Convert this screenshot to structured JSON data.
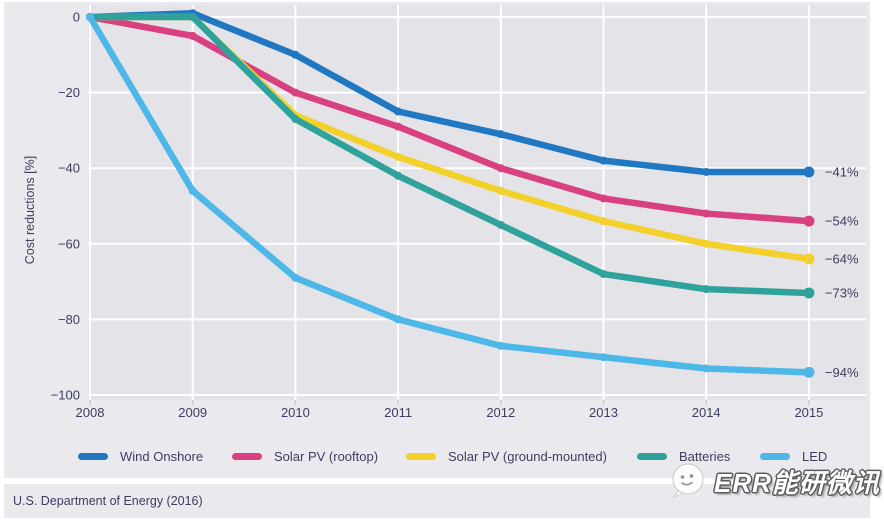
{
  "chart_data": {
    "type": "line",
    "title": "",
    "xlabel": "",
    "ylabel": "Cost reductions [%]",
    "x_labels": [
      "2008",
      "2009",
      "2010",
      "2011",
      "2012",
      "2013",
      "2014",
      "2015"
    ],
    "yticks": [
      {
        "label": "0",
        "v": 0
      },
      {
        "label": "−20",
        "v": -20
      },
      {
        "label": "−40",
        "v": -40
      },
      {
        "label": "−60",
        "v": -60
      },
      {
        "label": "−80",
        "v": -80
      },
      {
        "label": "−100",
        "v": -100
      }
    ],
    "ylim": [
      -100,
      4
    ],
    "grid": true,
    "legend_position": "bottom",
    "series": [
      {
        "name": "Wind Onshore",
        "color": "#1f78c1",
        "end_label": "−41%",
        "values": [
          0,
          1,
          -10,
          -25,
          -31,
          -38,
          -41,
          -41
        ]
      },
      {
        "name": "Solar PV (rooftop)",
        "color": "#d94080",
        "end_label": "−54%",
        "values": [
          0,
          -5,
          -20,
          -29,
          -40,
          -48,
          -52,
          -54
        ]
      },
      {
        "name": "Solar PV (ground-mounted)",
        "color": "#f3d02a",
        "end_label": "−64%",
        "values": [
          0,
          0,
          -26,
          -37,
          -46,
          -54,
          -60,
          -64
        ]
      },
      {
        "name": "Batteries",
        "color": "#2fa39b",
        "end_label": "−73%",
        "values": [
          0,
          0,
          -27,
          -42,
          -55,
          -68,
          -72,
          -73
        ]
      },
      {
        "name": "LED",
        "color": "#4db8e8",
        "end_label": "−94%",
        "values": [
          0,
          -46,
          -69,
          -80,
          -87,
          -90,
          -93,
          -94
        ]
      }
    ]
  },
  "footer": {
    "source": "U.S. Department of Energy (2016)"
  },
  "watermark": {
    "text": "ERR能研微讯"
  },
  "theme": {
    "panel_bg": "#e9e9ee",
    "plot_bg": "#e3e3e8",
    "grid_color": "#ffffff",
    "text_color": "#3d3d60",
    "tick_stub_color": "#c9c9d4"
  }
}
